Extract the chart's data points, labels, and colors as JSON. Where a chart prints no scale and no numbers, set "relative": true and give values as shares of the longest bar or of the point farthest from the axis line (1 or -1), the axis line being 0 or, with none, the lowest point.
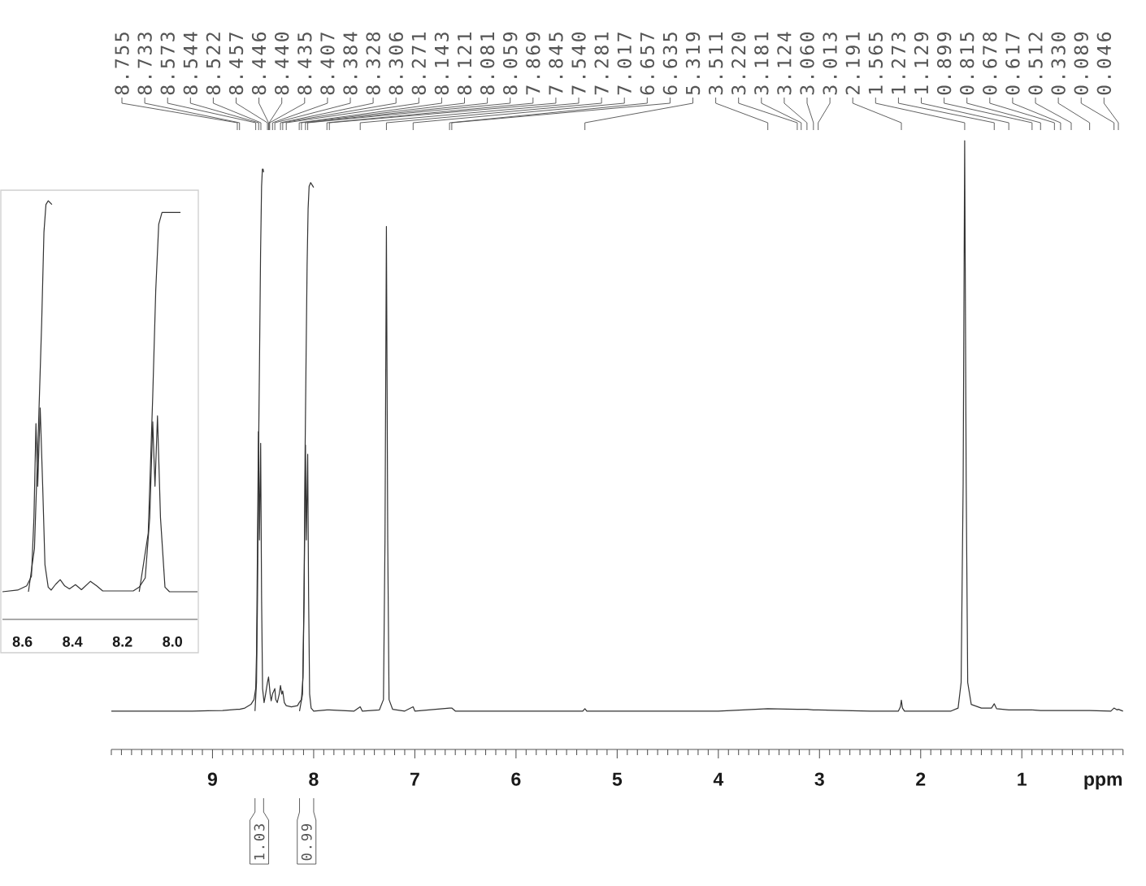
{
  "chart_data": [
    {
      "type": "line",
      "relative": true,
      "xlabel": "ppm",
      "xlim": [
        10,
        0
      ],
      "xticks": [
        {
          "value": 0,
          "label": null
        },
        {
          "value": 0.1,
          "label": null
        },
        {
          "value": 0.2,
          "label": null
        },
        {
          "value": 0.3,
          "label": null
        },
        {
          "value": 0.4,
          "label": null
        },
        {
          "value": 0.5,
          "label": null
        },
        {
          "value": 0.6,
          "label": null
        },
        {
          "value": 0.7,
          "label": null
        },
        {
          "value": 0.8,
          "label": null
        },
        {
          "value": 0.9,
          "label": null
        },
        1,
        {
          "value": 1.1,
          "label": null
        },
        {
          "value": 1.2,
          "label": null
        },
        {
          "value": 1.3,
          "label": null
        },
        {
          "value": 1.4,
          "label": null
        },
        {
          "value": 1.5,
          "label": null
        },
        {
          "value": 1.6,
          "label": null
        },
        {
          "value": 1.7,
          "label": null
        },
        {
          "value": 1.8,
          "label": null
        },
        {
          "value": 1.9,
          "label": null
        },
        2,
        {
          "value": 2.1,
          "label": null
        },
        {
          "value": 2.2,
          "label": null
        },
        {
          "value": 2.3,
          "label": null
        },
        {
          "value": 2.4,
          "label": null
        },
        {
          "value": 2.5,
          "label": null
        },
        {
          "value": 2.6,
          "label": null
        },
        {
          "value": 2.7,
          "label": null
        },
        {
          "value": 2.8,
          "label": null
        },
        {
          "value": 2.9,
          "label": null
        },
        3,
        {
          "value": 3.1,
          "label": null
        },
        {
          "value": 3.2,
          "label": null
        },
        {
          "value": 3.3,
          "label": null
        },
        {
          "value": 3.4,
          "label": null
        },
        {
          "value": 3.5,
          "label": null
        },
        {
          "value": 3.6,
          "label": null
        },
        {
          "value": 3.7,
          "label": null
        },
        {
          "value": 3.8,
          "label": null
        },
        {
          "value": 3.9,
          "label": null
        },
        4,
        {
          "value": 4.1,
          "label": null
        },
        {
          "value": 4.2,
          "label": null
        },
        {
          "value": 4.3,
          "label": null
        },
        {
          "value": 4.4,
          "label": null
        },
        {
          "value": 4.5,
          "label": null
        },
        {
          "value": 4.6,
          "label": null
        },
        {
          "value": 4.7,
          "label": null
        },
        {
          "value": 4.8,
          "label": null
        },
        {
          "value": 4.9,
          "label": null
        },
        5,
        {
          "value": 5.1,
          "label": null
        },
        {
          "value": 5.2,
          "label": null
        },
        {
          "value": 5.3,
          "label": null
        },
        {
          "value": 5.4,
          "label": null
        },
        {
          "value": 5.5,
          "label": null
        },
        {
          "value": 5.6,
          "label": null
        },
        {
          "value": 5.7,
          "label": null
        },
        {
          "value": 5.8,
          "label": null
        },
        {
          "value": 5.9,
          "label": null
        },
        6,
        {
          "value": 6.1,
          "label": null
        },
        {
          "value": 6.2,
          "label": null
        },
        {
          "value": 6.3,
          "label": null
        },
        {
          "value": 6.4,
          "label": null
        },
        {
          "value": 6.5,
          "label": null
        },
        {
          "value": 6.6,
          "label": null
        },
        {
          "value": 6.7,
          "label": null
        },
        {
          "value": 6.8,
          "label": null
        },
        {
          "value": 6.9,
          "label": null
        },
        7,
        {
          "value": 7.1,
          "label": null
        },
        {
          "value": 7.2,
          "label": null
        },
        {
          "value": 7.3,
          "label": null
        },
        {
          "value": 7.4,
          "label": null
        },
        {
          "value": 7.5,
          "label": null
        },
        {
          "value": 7.6,
          "label": null
        },
        {
          "value": 7.7,
          "label": null
        },
        {
          "value": 7.8,
          "label": null
        },
        {
          "value": 7.9,
          "label": null
        },
        8,
        {
          "value": 8.1,
          "label": null
        },
        {
          "value": 8.2,
          "label": null
        },
        {
          "value": 8.3,
          "label": null
        },
        {
          "value": 8.4,
          "label": null
        },
        {
          "value": 8.5,
          "label": null
        },
        {
          "value": 8.6,
          "label": null
        },
        {
          "value": 8.7,
          "label": null
        },
        {
          "value": 8.8,
          "label": null
        },
        {
          "value": 8.9,
          "label": null
        },
        9,
        {
          "value": 9.1,
          "label": null
        },
        {
          "value": 9.2,
          "label": null
        },
        {
          "value": 9.3,
          "label": null
        },
        {
          "value": 9.4,
          "label": null
        },
        {
          "value": 9.5,
          "label": null
        },
        {
          "value": 9.6,
          "label": null
        },
        {
          "value": 9.7,
          "label": null
        },
        {
          "value": 9.8,
          "label": null
        },
        {
          "value": 9.9,
          "label": null
        },
        {
          "value": 10,
          "label": null
        }
      ],
      "series": [
        {
          "color": "#333333",
          "x": [
            10.0,
            9.2,
            8.9,
            8.755,
            8.733,
            8.68,
            8.62,
            8.59,
            8.573,
            8.565,
            8.555,
            8.546,
            8.536,
            8.524,
            8.515,
            8.505,
            8.49,
            8.475,
            8.457,
            8.446,
            8.43,
            8.42,
            8.407,
            8.384,
            8.375,
            8.36,
            8.34,
            8.328,
            8.315,
            8.306,
            8.29,
            8.271,
            8.22,
            8.16,
            8.143,
            8.121,
            8.105,
            8.095,
            8.081,
            8.072,
            8.059,
            8.05,
            8.04,
            8.025,
            8.0,
            7.869,
            7.845,
            7.6,
            7.54,
            7.52,
            7.35,
            7.31,
            7.295,
            7.281,
            7.268,
            7.255,
            7.22,
            7.1,
            7.017,
            7.0,
            6.657,
            6.635,
            6.6,
            5.34,
            5.319,
            5.3,
            4.0,
            3.511,
            3.22,
            3.181,
            3.124,
            3.06,
            3.013,
            2.5,
            2.22,
            2.2,
            2.191,
            2.18,
            2.16,
            1.7,
            1.63,
            1.6,
            1.58,
            1.565,
            1.55,
            1.535,
            1.5,
            1.4,
            1.3,
            1.273,
            1.25,
            1.129,
            0.899,
            0.815,
            0.678,
            0.617,
            0.512,
            0.33,
            0.12,
            0.089,
            0.06,
            0.046,
            0.0
          ],
          "values": [
            0.063,
            0.063,
            0.064,
            0.066,
            0.066,
            0.068,
            0.074,
            0.082,
            0.1,
            0.157,
            0.344,
            0.522,
            0.344,
            0.503,
            0.25,
            0.1,
            0.077,
            0.091,
            0.11,
            0.119,
            0.091,
            0.08,
            0.091,
            0.1,
            0.082,
            0.077,
            0.091,
            0.105,
            0.091,
            0.096,
            0.077,
            0.072,
            0.07,
            0.072,
            0.077,
            0.082,
            0.119,
            0.25,
            0.5,
            0.344,
            0.485,
            0.25,
            0.091,
            0.068,
            0.063,
            0.065,
            0.065,
            0.063,
            0.07,
            0.063,
            0.065,
            0.082,
            0.344,
            0.859,
            0.344,
            0.082,
            0.066,
            0.063,
            0.07,
            0.063,
            0.068,
            0.068,
            0.063,
            0.063,
            0.067,
            0.063,
            0.063,
            0.067,
            0.066,
            0.066,
            0.066,
            0.065,
            0.065,
            0.063,
            0.063,
            0.07,
            0.081,
            0.068,
            0.063,
            0.063,
            0.068,
            0.11,
            0.438,
            1.0,
            0.438,
            0.11,
            0.074,
            0.068,
            0.068,
            0.075,
            0.067,
            0.065,
            0.065,
            0.064,
            0.064,
            0.064,
            0.064,
            0.064,
            0.063,
            0.068,
            0.065,
            0.066,
            0.063
          ]
        },
        {
          "color": "#333333",
          "x": [
            8.58,
            8.565,
            8.555,
            8.545,
            8.535,
            8.525,
            8.515,
            8.507,
            8.5,
            8.495
          ],
          "values": [
            0.063,
            0.11,
            0.25,
            0.485,
            0.644,
            0.813,
            0.925,
            0.953,
            0.953,
            0.948
          ]
        },
        {
          "color": "#333333",
          "x": [
            8.14,
            8.11,
            8.095,
            8.085,
            8.075,
            8.065,
            8.055,
            8.045,
            8.03,
            8.015,
            8.0
          ],
          "values": [
            0.063,
            0.091,
            0.25,
            0.485,
            0.644,
            0.794,
            0.888,
            0.925,
            0.931,
            0.927,
            0.923
          ]
        }
      ],
      "annotations": [
        {
          "text": "8.755",
          "x": 8.755
        },
        {
          "text": "8.733",
          "x": 8.733
        },
        {
          "text": "8.573",
          "x": 8.573
        },
        {
          "text": "8.544",
          "x": 8.544
        },
        {
          "text": "8.522",
          "x": 8.522
        },
        {
          "text": "8.457",
          "x": 8.457
        },
        {
          "text": "8.446",
          "x": 8.446
        },
        {
          "text": "8.440",
          "x": 8.44
        },
        {
          "text": "8.435",
          "x": 8.435
        },
        {
          "text": "8.407",
          "x": 8.407
        },
        {
          "text": "8.384",
          "x": 8.384
        },
        {
          "text": "8.328",
          "x": 8.328
        },
        {
          "text": "8.306",
          "x": 8.306
        },
        {
          "text": "8.271",
          "x": 8.271
        },
        {
          "text": "8.143",
          "x": 8.143
        },
        {
          "text": "8.121",
          "x": 8.121
        },
        {
          "text": "8.081",
          "x": 8.081
        },
        {
          "text": "8.059",
          "x": 8.059
        },
        {
          "text": "7.869",
          "x": 7.869
        },
        {
          "text": "7.845",
          "x": 7.845
        },
        {
          "text": "7.540",
          "x": 7.54
        },
        {
          "text": "7.281",
          "x": 7.281
        },
        {
          "text": "7.017",
          "x": 7.017
        },
        {
          "text": "6.657",
          "x": 6.657
        },
        {
          "text": "6.635",
          "x": 6.635
        },
        {
          "text": "5.319",
          "x": 5.319
        },
        {
          "text": "3.511",
          "x": 3.511
        },
        {
          "text": "3.220",
          "x": 3.22
        },
        {
          "text": "3.181",
          "x": 3.181
        },
        {
          "text": "3.124",
          "x": 3.124
        },
        {
          "text": "3.060",
          "x": 3.06
        },
        {
          "text": "3.013",
          "x": 3.013
        },
        {
          "text": "2.191",
          "x": 2.191
        },
        {
          "text": "1.565",
          "x": 1.565
        },
        {
          "text": "1.273",
          "x": 1.273
        },
        {
          "text": "1.129",
          "x": 1.129
        },
        {
          "text": "0.899",
          "x": 0.899
        },
        {
          "text": "0.815",
          "x": 0.815
        },
        {
          "text": "0.678",
          "x": 0.678
        },
        {
          "text": "0.617",
          "x": 0.617
        },
        {
          "text": "0.512",
          "x": 0.512
        },
        {
          "text": "0.330",
          "x": 0.33
        },
        {
          "text": "0.089",
          "x": 0.089
        },
        {
          "text": "0.046",
          "x": 0.046
        },
        "1.03",
        "0.99"
      ]
    },
    {
      "type": "line",
      "relative": true,
      "xlim": [
        8.68,
        7.9
      ],
      "xticks": [
        8.6,
        8.4,
        8.2,
        {
          "value": 8,
          "label": "8.0"
        }
      ],
      "series": [
        {
          "color": "#333333",
          "x": [
            8.68,
            8.619,
            8.583,
            8.564,
            8.554,
            8.546,
            8.539,
            8.529,
            8.519,
            8.51,
            8.497,
            8.485,
            8.467,
            8.449,
            8.431,
            8.412,
            8.388,
            8.364,
            8.328,
            8.303,
            8.279,
            8.157,
            8.133,
            8.109,
            8.091,
            8.079,
            8.07,
            8.06,
            8.048,
            8.03,
            8.012,
            7.9
          ],
          "values": [
            0.066,
            0.07,
            0.08,
            0.103,
            0.243,
            0.468,
            0.318,
            0.505,
            0.318,
            0.131,
            0.077,
            0.07,
            0.084,
            0.095,
            0.08,
            0.073,
            0.083,
            0.071,
            0.091,
            0.08,
            0.068,
            0.068,
            0.077,
            0.099,
            0.243,
            0.472,
            0.318,
            0.486,
            0.243,
            0.077,
            0.066,
            0.066
          ]
        },
        {
          "color": "#333333",
          "x": [
            8.576,
            8.552,
            8.536,
            8.523,
            8.514,
            8.506,
            8.497,
            8.482
          ],
          "values": [
            0.066,
            0.169,
            0.458,
            0.71,
            0.925,
            0.991,
            1.0,
            0.991
          ]
        },
        {
          "color": "#333333",
          "x": [
            8.133,
            8.097,
            8.079,
            8.067,
            8.055,
            8.042,
            7.999,
            7.968
          ],
          "values": [
            0.066,
            0.206,
            0.533,
            0.785,
            0.944,
            0.972,
            0.972,
            0.972
          ]
        }
      ]
    }
  ]
}
